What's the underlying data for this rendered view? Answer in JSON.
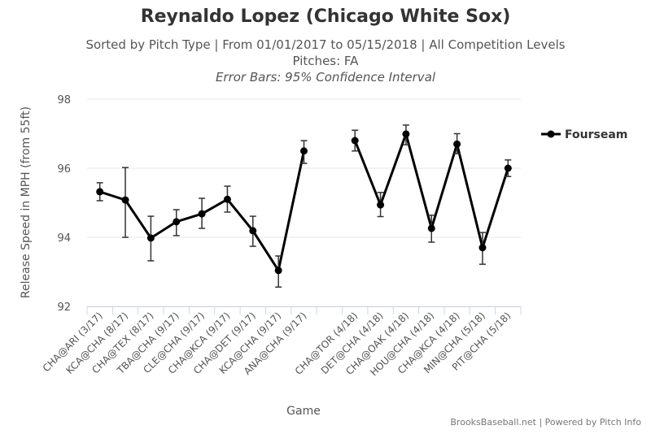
{
  "chart_data": {
    "type": "line",
    "title": "Reynaldo Lopez (Chicago White Sox)",
    "subtitle": "Sorted by Pitch Type | From 01/01/2017 to 05/15/2018 | All Competition Levels",
    "subtitle2": "Pitches: FA",
    "subtitle3": "Error Bars: 95% Confidence Interval",
    "xlabel": "Game",
    "ylabel": "Release Speed in MPH (from 55ft)",
    "ylim": [
      92,
      98
    ],
    "yticks": [
      92,
      94,
      96,
      98
    ],
    "grid": true,
    "legend_position": "right",
    "categories": [
      "CHA@ARI (3/17)",
      "KCA@CHA (8/17)",
      "CHA@TEX (8/17)",
      "TBA@CHA (9/17)",
      "CLE@CHA (9/17)",
      "CHA@KCA (9/17)",
      "CHA@DET (9/17)",
      "KCA@CHA (9/17)",
      "ANA@CHA (9/17)",
      "",
      "CHA@TOR (4/18)",
      "DET@CHA (4/18)",
      "CHA@OAK (4/18)",
      "HOU@CHA (4/18)",
      "CHA@KCA (4/18)",
      "MIN@CHA (5/18)",
      "PIT@CHA (5/18)"
    ],
    "series": [
      {
        "name": "Fourseam",
        "color": "#000000",
        "values": [
          95.32,
          95.08,
          93.98,
          94.45,
          94.68,
          95.1,
          94.19,
          93.04,
          96.5,
          null,
          96.8,
          94.94,
          96.99,
          94.26,
          96.7,
          93.7,
          96.0
        ],
        "err_high": [
          95.58,
          96.02,
          94.61,
          94.8,
          95.13,
          95.48,
          94.61,
          93.46,
          96.8,
          null,
          97.1,
          95.3,
          97.25,
          94.64,
          97.0,
          94.14,
          96.24
        ],
        "err_low": [
          95.06,
          94.0,
          93.32,
          94.05,
          94.26,
          94.73,
          93.74,
          92.56,
          96.14,
          null,
          96.5,
          94.6,
          96.68,
          93.86,
          96.42,
          93.22,
          95.76
        ]
      }
    ]
  },
  "credit": "BrooksBaseball.net | Powered by Pitch Info"
}
